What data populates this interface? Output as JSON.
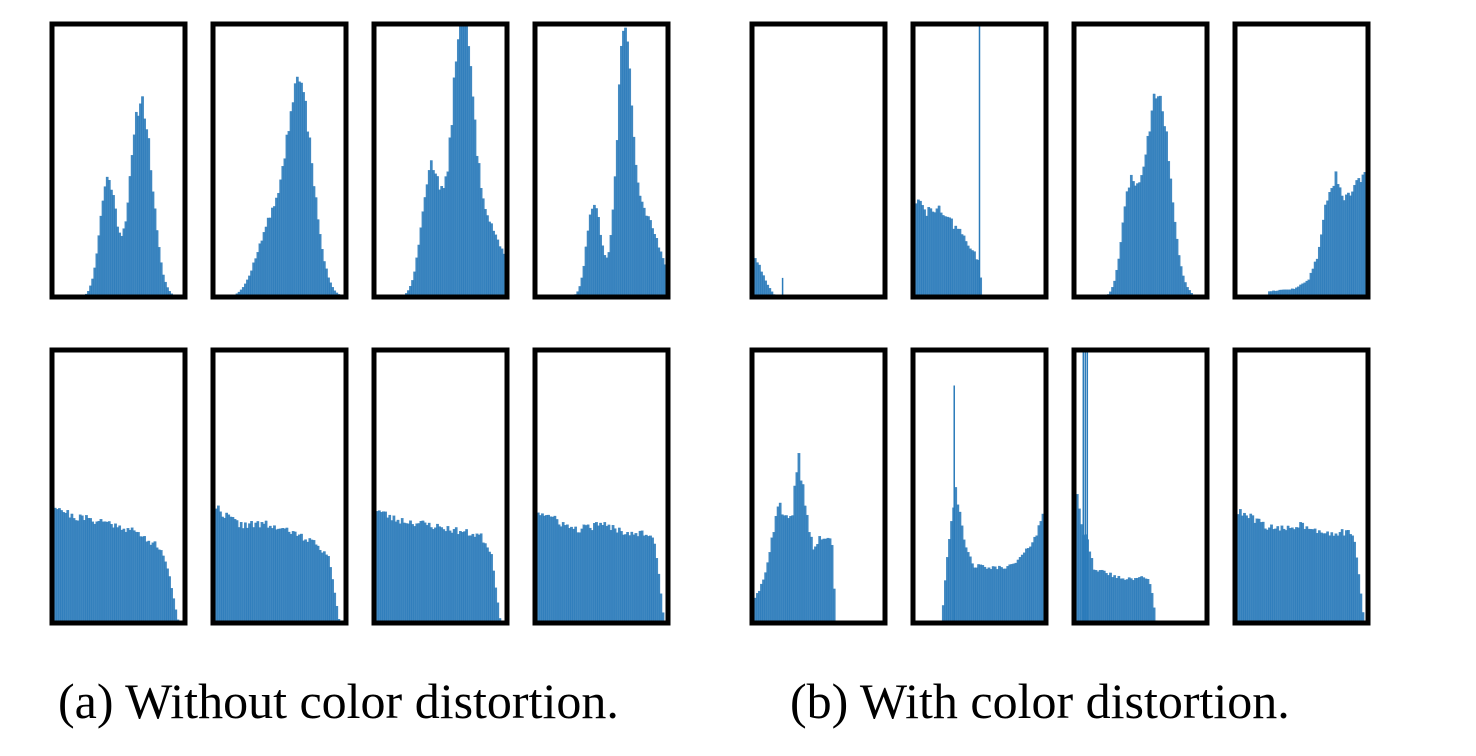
{
  "captions": {
    "a": "(a) Without color distortion.",
    "b": "(b) With color distortion."
  },
  "style": {
    "bar_color": "#2b7bba",
    "frame_color": "#000000"
  },
  "chart_data": [
    {
      "type": "bar",
      "group": "a",
      "row": 1,
      "col": 1,
      "xlim": [
        0,
        1
      ],
      "ylim": [
        0,
        1
      ],
      "series": [
        {
          "components": [
            {
              "mu": 0.42,
              "sigma": 0.06,
              "amp": 0.43
            },
            {
              "mu": 0.67,
              "sigma": 0.08,
              "amp": 0.72
            }
          ],
          "range": [
            0.12,
            0.98
          ],
          "noise": 0.05,
          "seed": 11
        }
      ]
    },
    {
      "type": "bar",
      "group": "a",
      "row": 1,
      "col": 2,
      "xlim": [
        0,
        1
      ],
      "ylim": [
        0,
        1
      ],
      "series": [
        {
          "components": [
            {
              "mu": 0.42,
              "sigma": 0.1,
              "amp": 0.23
            },
            {
              "mu": 0.65,
              "sigma": 0.1,
              "amp": 0.76
            }
          ],
          "range": [
            0.12,
            0.98
          ],
          "noise": 0.05,
          "seed": 12
        }
      ]
    },
    {
      "type": "bar",
      "group": "a",
      "row": 1,
      "col": 3,
      "xlim": [
        0,
        1
      ],
      "ylim": [
        0,
        1
      ],
      "series": [
        {
          "components": [
            {
              "mu": 0.43,
              "sigma": 0.07,
              "amp": 0.45
            },
            {
              "mu": 0.66,
              "sigma": 0.07,
              "amp": 0.82
            },
            {
              "mu": 0.78,
              "sigma": 0.16,
              "amp": 0.32
            }
          ],
          "range": [
            0.1,
            1.0
          ],
          "noise": 0.05,
          "seed": 13
        }
      ]
    },
    {
      "type": "bar",
      "group": "a",
      "row": 1,
      "col": 4,
      "xlim": [
        0,
        1
      ],
      "ylim": [
        0,
        1
      ],
      "series": [
        {
          "components": [
            {
              "mu": 0.44,
              "sigma": 0.05,
              "amp": 0.33
            },
            {
              "mu": 0.67,
              "sigma": 0.05,
              "amp": 0.74
            },
            {
              "mu": 0.78,
              "sigma": 0.14,
              "amp": 0.33
            }
          ],
          "range": [
            0.12,
            1.0
          ],
          "noise": 0.05,
          "seed": 14
        }
      ]
    },
    {
      "type": "bar",
      "group": "a",
      "row": 2,
      "col": 1,
      "xlim": [
        0,
        1
      ],
      "ylim": [
        0,
        1
      ],
      "series": [
        {
          "points": [
            [
              0,
              0.44
            ],
            [
              0.15,
              0.39
            ],
            [
              0.4,
              0.37
            ],
            [
              0.6,
              0.34
            ],
            [
              0.8,
              0.28
            ],
            [
              0.87,
              0.2
            ],
            [
              0.95,
              0.0
            ],
            [
              1.0,
              0.0
            ]
          ],
          "noise": 0.04,
          "seed": 21
        }
      ]
    },
    {
      "type": "bar",
      "group": "a",
      "row": 2,
      "col": 2,
      "xlim": [
        0,
        1
      ],
      "ylim": [
        0,
        1
      ],
      "series": [
        {
          "points": [
            [
              0,
              0.44
            ],
            [
              0.05,
              0.41
            ],
            [
              0.2,
              0.36
            ],
            [
              0.4,
              0.36
            ],
            [
              0.6,
              0.33
            ],
            [
              0.78,
              0.29
            ],
            [
              0.87,
              0.24
            ],
            [
              0.95,
              0.0
            ],
            [
              1.0,
              0.0
            ]
          ],
          "noise": 0.04,
          "seed": 22
        }
      ]
    },
    {
      "type": "bar",
      "group": "a",
      "row": 2,
      "col": 3,
      "xlim": [
        0,
        1
      ],
      "ylim": [
        0,
        1
      ],
      "series": [
        {
          "points": [
            [
              0,
              0.42
            ],
            [
              0.15,
              0.38
            ],
            [
              0.4,
              0.36
            ],
            [
              0.6,
              0.34
            ],
            [
              0.8,
              0.32
            ],
            [
              0.88,
              0.26
            ],
            [
              0.95,
              0.0
            ],
            [
              1.0,
              0.0
            ]
          ],
          "noise": 0.04,
          "seed": 23
        }
      ]
    },
    {
      "type": "bar",
      "group": "a",
      "row": 2,
      "col": 4,
      "xlim": [
        0,
        1
      ],
      "ylim": [
        0,
        1
      ],
      "series": [
        {
          "points": [
            [
              0,
              0.41
            ],
            [
              0.1,
              0.39
            ],
            [
              0.3,
              0.34
            ],
            [
              0.5,
              0.36
            ],
            [
              0.7,
              0.33
            ],
            [
              0.85,
              0.33
            ],
            [
              0.9,
              0.3
            ],
            [
              0.97,
              0.0
            ],
            [
              1.0,
              0.0
            ]
          ],
          "noise": 0.04,
          "seed": 24
        }
      ]
    },
    {
      "type": "bar",
      "group": "b",
      "row": 1,
      "col": 1,
      "xlim": [
        0,
        1
      ],
      "ylim": [
        0,
        1
      ],
      "series": [
        {
          "points": [
            [
              0,
              0.17
            ],
            [
              0.05,
              0.12
            ],
            [
              0.1,
              0.06
            ],
            [
              0.16,
              0.01
            ],
            [
              0.2,
              0.0
            ],
            [
              1.0,
              0.0
            ]
          ],
          "noise": 0.04,
          "seed": 31,
          "spikes": [
            [
              0.23,
              0.07
            ]
          ]
        }
      ]
    },
    {
      "type": "bar",
      "group": "b",
      "row": 1,
      "col": 2,
      "xlim": [
        0,
        1
      ],
      "ylim": [
        0,
        1
      ],
      "series": [
        {
          "points": [
            [
              0,
              0.37
            ],
            [
              0.1,
              0.31
            ],
            [
              0.2,
              0.32
            ],
            [
              0.35,
              0.24
            ],
            [
              0.45,
              0.17
            ],
            [
              0.5,
              0.12
            ],
            [
              0.52,
              0.0
            ],
            [
              1.0,
              0.0
            ]
          ],
          "noise": 0.06,
          "seed": 32,
          "spikes": [
            [
              0.5,
              1.0
            ]
          ]
        }
      ]
    },
    {
      "type": "bar",
      "group": "b",
      "row": 1,
      "col": 3,
      "xlim": [
        0,
        1
      ],
      "ylim": [
        0,
        1
      ],
      "series": [
        {
          "components": [
            {
              "mu": 0.42,
              "sigma": 0.06,
              "amp": 0.37
            },
            {
              "mu": 0.63,
              "sigma": 0.09,
              "amp": 0.76
            }
          ],
          "range": [
            0.12,
            0.96
          ],
          "noise": 0.05,
          "seed": 33
        }
      ]
    },
    {
      "type": "bar",
      "group": "b",
      "row": 1,
      "col": 4,
      "xlim": [
        0,
        1
      ],
      "ylim": [
        0,
        1
      ],
      "series": [
        {
          "points": [
            [
              0,
              0.0
            ],
            [
              0.24,
              0.0
            ],
            [
              0.25,
              0.02
            ],
            [
              0.45,
              0.03
            ],
            [
              0.55,
              0.06
            ],
            [
              0.62,
              0.15
            ],
            [
              0.7,
              0.38
            ],
            [
              0.76,
              0.44
            ],
            [
              0.8,
              0.36
            ],
            [
              0.88,
              0.39
            ],
            [
              0.93,
              0.43
            ],
            [
              1.0,
              0.46
            ]
          ],
          "noise": 0.05,
          "seed": 34
        }
      ]
    },
    {
      "type": "bar",
      "group": "b",
      "row": 2,
      "col": 1,
      "xlim": [
        0,
        1
      ],
      "ylim": [
        0,
        1
      ],
      "series": [
        {
          "points": [
            [
              0,
              0.06
            ],
            [
              0.08,
              0.15
            ],
            [
              0.15,
              0.3
            ],
            [
              0.2,
              0.43
            ],
            [
              0.27,
              0.36
            ],
            [
              0.3,
              0.4
            ],
            [
              0.35,
              0.6
            ],
            [
              0.4,
              0.43
            ],
            [
              0.46,
              0.27
            ],
            [
              0.53,
              0.32
            ],
            [
              0.6,
              0.29
            ],
            [
              0.63,
              0.0
            ],
            [
              1.0,
              0.0
            ]
          ],
          "noise": 0.06,
          "seed": 41
        }
      ]
    },
    {
      "type": "bar",
      "group": "b",
      "row": 2,
      "col": 2,
      "xlim": [
        0,
        1
      ],
      "ylim": [
        0,
        1
      ],
      "series": [
        {
          "points": [
            [
              0,
              0.0
            ],
            [
              0.22,
              0.0
            ],
            [
              0.23,
              0.1
            ],
            [
              0.27,
              0.3
            ],
            [
              0.32,
              0.5
            ],
            [
              0.38,
              0.3
            ],
            [
              0.45,
              0.21
            ],
            [
              0.6,
              0.2
            ],
            [
              0.75,
              0.21
            ],
            [
              0.85,
              0.26
            ],
            [
              0.93,
              0.33
            ],
            [
              1.0,
              0.42
            ]
          ],
          "noise": 0.04,
          "seed": 42,
          "spikes": [
            [
              0.31,
              0.87
            ]
          ]
        }
      ]
    },
    {
      "type": "bar",
      "group": "b",
      "row": 2,
      "col": 3,
      "xlim": [
        0,
        1
      ],
      "ylim": [
        0,
        1
      ],
      "series": [
        {
          "points": [
            [
              0,
              0.0
            ],
            [
              0.02,
              0.5
            ],
            [
              0.06,
              0.35
            ],
            [
              0.12,
              0.27
            ],
            [
              0.15,
              0.2
            ],
            [
              0.3,
              0.17
            ],
            [
              0.45,
              0.16
            ],
            [
              0.55,
              0.17
            ],
            [
              0.58,
              0.13
            ],
            [
              0.6,
              0.06
            ],
            [
              0.62,
              0.0
            ],
            [
              1.0,
              0.0
            ]
          ],
          "noise": 0.05,
          "seed": 43,
          "spikes": [
            [
              0.07,
              1.0
            ],
            [
              0.085,
              1.0
            ],
            [
              0.1,
              1.0
            ]
          ]
        }
      ]
    },
    {
      "type": "bar",
      "group": "b",
      "row": 2,
      "col": 4,
      "xlim": [
        0,
        1
      ],
      "ylim": [
        0,
        1
      ],
      "series": [
        {
          "points": [
            [
              0,
              0.41
            ],
            [
              0.1,
              0.39
            ],
            [
              0.3,
              0.34
            ],
            [
              0.5,
              0.36
            ],
            [
              0.7,
              0.33
            ],
            [
              0.85,
              0.33
            ],
            [
              0.9,
              0.3
            ],
            [
              0.97,
              0.0
            ],
            [
              1.0,
              0.0
            ]
          ],
          "noise": 0.04,
          "seed": 44
        }
      ]
    }
  ]
}
